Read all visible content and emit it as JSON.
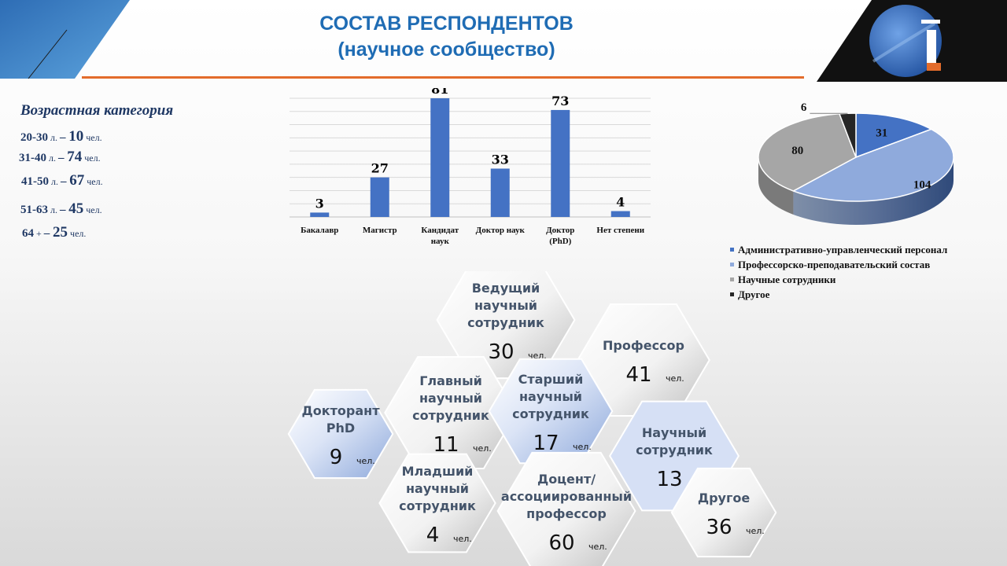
{
  "title": {
    "line1": "СОСТАВ РЕСПОНДЕНТОВ",
    "line2": "(научное сообщество)"
  },
  "age": {
    "heading": "Возрастная категория",
    "rows": [
      {
        "range": "20-30",
        "unit": "л.",
        "dash": "–",
        "num": "10",
        "suffix": "чел."
      },
      {
        "range": "31-40",
        "unit": "л.",
        "dash": "–",
        "num": "74",
        "suffix": "чел."
      },
      {
        "range": "41-50",
        "unit": "л.",
        "dash": "–",
        "num": "67",
        "suffix": "чел."
      },
      {
        "range": "51-63",
        "unit": "л.",
        "dash": "–",
        "num": "45",
        "suffix": "чел."
      },
      {
        "range": "64",
        "unit": "+",
        "dash": "–",
        "num": "25",
        "suffix": "чел."
      }
    ]
  },
  "colors": {
    "bar": "#4472C4",
    "title": "#1F6CB4",
    "accent_line": "#E36C2B",
    "pie": [
      "#4472C4",
      "#8FAADC",
      "#A6A6A6",
      "#262626"
    ],
    "hex_blue": "#8EA9DB"
  },
  "chart_data": [
    {
      "type": "bar",
      "categories": [
        "Бакалавр",
        "Магистр",
        "Кандидат наук",
        "Доктор наук",
        "Доктор (PhD)",
        "Нет степени"
      ],
      "category_lines": [
        [
          "Бакалавр"
        ],
        [
          "Магистр"
        ],
        [
          "Кандидат",
          "наук"
        ],
        [
          "Доктор  наук"
        ],
        [
          "Доктор",
          "(PhD)"
        ],
        [
          "Нет  степени"
        ]
      ],
      "values": [
        3,
        27,
        81,
        33,
        73,
        4
      ],
      "ylim": [
        0,
        81
      ],
      "grid": true,
      "data_labels": true
    },
    {
      "type": "pie",
      "style": "3d",
      "categories": [
        "Административно-управленческий персонал",
        "Профессорско-преподавательский состав",
        "Научные сотрудники",
        "Другое"
      ],
      "values": [
        31,
        104,
        80,
        6
      ],
      "legend_position": "bottom"
    }
  ],
  "positions": [
    {
      "label_lines": [
        "Ведущий",
        "научный",
        "сотрудник"
      ],
      "count": "30",
      "unit": "чел.",
      "style": "gray"
    },
    {
      "label_lines": [
        "Профессор"
      ],
      "count": "41",
      "unit": "чел.",
      "style": "gray"
    },
    {
      "label_lines": [
        "Главный",
        "научный",
        "сотрудник"
      ],
      "count": "11",
      "unit": "чел.",
      "style": "gray"
    },
    {
      "label_lines": [
        "Старший",
        "научный",
        "сотрудник"
      ],
      "count": "17",
      "unit": "чел.",
      "style": "blue"
    },
    {
      "label_lines": [
        "Докторант",
        "PhD"
      ],
      "count": "9",
      "unit": "чел.",
      "style": "blue"
    },
    {
      "label_lines": [
        "Научный",
        "сотрудник"
      ],
      "count": "13",
      "unit": "чел.",
      "style": "lightblue"
    },
    {
      "label_lines": [
        "Младший",
        "научный",
        "сотрудник"
      ],
      "count": "4",
      "unit": "чел.",
      "style": "gray"
    },
    {
      "label_lines": [
        "Доцент/",
        "ассоциированный",
        "профессор"
      ],
      "count": "60",
      "unit": "чел.",
      "style": "gray"
    },
    {
      "label_lines": [
        "Другое"
      ],
      "count": "36",
      "unit": "чел.",
      "style": "gray"
    }
  ]
}
